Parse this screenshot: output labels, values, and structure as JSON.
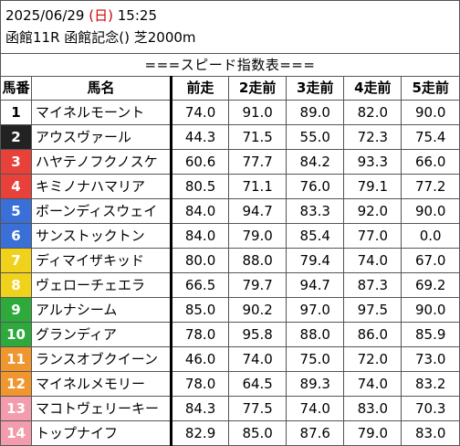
{
  "header": {
    "date": "2025/06/29",
    "dow_open": "(",
    "dow": "日",
    "dow_close": ")",
    "time": "15:25",
    "race": "函館11R 函館記念() 芝2000m"
  },
  "table_title": "===スピード指数表===",
  "columns": {
    "num": "馬番",
    "name": "馬名",
    "r1": "前走",
    "r2": "2走前",
    "r3": "3走前",
    "r4": "4走前",
    "r5": "5走前"
  },
  "rows": [
    {
      "num": "1",
      "name": "マイネルモーント",
      "r1": "74.0",
      "r2": "91.0",
      "r3": "89.0",
      "r4": "82.0",
      "r5": "90.0",
      "bg": "#ffffff",
      "fg": "#000000"
    },
    {
      "num": "2",
      "name": "アウスヴァール",
      "r1": "44.3",
      "r2": "71.5",
      "r3": "55.0",
      "r4": "72.3",
      "r5": "75.4",
      "bg": "#222222",
      "fg": "#ffffff"
    },
    {
      "num": "3",
      "name": "ハヤテノフクノスケ",
      "r1": "60.6",
      "r2": "77.7",
      "r3": "84.2",
      "r4": "93.3",
      "r5": "66.0",
      "bg": "#e8413a",
      "fg": "#ffffff"
    },
    {
      "num": "4",
      "name": "キミノナハマリア",
      "r1": "80.5",
      "r2": "71.1",
      "r3": "76.0",
      "r4": "79.1",
      "r5": "77.2",
      "bg": "#e8413a",
      "fg": "#ffffff"
    },
    {
      "num": "5",
      "name": "ボーンディスウェイ",
      "r1": "84.0",
      "r2": "94.7",
      "r3": "83.3",
      "r4": "92.0",
      "r5": "90.0",
      "bg": "#3a6fd8",
      "fg": "#ffffff"
    },
    {
      "num": "6",
      "name": "サンストックトン",
      "r1": "84.0",
      "r2": "79.0",
      "r3": "85.4",
      "r4": "77.0",
      "r5": "0.0",
      "bg": "#3a6fd8",
      "fg": "#ffffff"
    },
    {
      "num": "7",
      "name": "ディマイザキッド",
      "r1": "80.0",
      "r2": "88.0",
      "r3": "79.4",
      "r4": "74.0",
      "r5": "67.0",
      "bg": "#f0d21c",
      "fg": "#ffffff"
    },
    {
      "num": "8",
      "name": "ヴェローチェエラ",
      "r1": "66.5",
      "r2": "79.7",
      "r3": "94.7",
      "r4": "87.3",
      "r5": "69.2",
      "bg": "#f0d21c",
      "fg": "#ffffff"
    },
    {
      "num": "9",
      "name": "アルナシーム",
      "r1": "85.0",
      "r2": "90.2",
      "r3": "97.0",
      "r4": "97.5",
      "r5": "90.0",
      "bg": "#2eaa3c",
      "fg": "#ffffff"
    },
    {
      "num": "10",
      "name": "グランディア",
      "r1": "78.0",
      "r2": "95.8",
      "r3": "88.0",
      "r4": "86.0",
      "r5": "85.9",
      "bg": "#2eaa3c",
      "fg": "#ffffff"
    },
    {
      "num": "11",
      "name": "ランスオブクイーン",
      "r1": "46.0",
      "r2": "74.0",
      "r3": "75.0",
      "r4": "72.0",
      "r5": "73.0",
      "bg": "#f0962e",
      "fg": "#ffffff"
    },
    {
      "num": "12",
      "name": "マイネルメモリー",
      "r1": "78.0",
      "r2": "64.5",
      "r3": "89.3",
      "r4": "74.0",
      "r5": "83.2",
      "bg": "#f0962e",
      "fg": "#ffffff"
    },
    {
      "num": "13",
      "name": "マコトヴェリーキー",
      "r1": "84.3",
      "r2": "77.5",
      "r3": "74.0",
      "r4": "83.0",
      "r5": "70.3",
      "bg": "#f29cae",
      "fg": "#ffffff"
    },
    {
      "num": "14",
      "name": "トップナイフ",
      "r1": "82.9",
      "r2": "85.0",
      "r3": "87.6",
      "r4": "79.0",
      "r5": "83.0",
      "bg": "#f29cae",
      "fg": "#ffffff"
    }
  ]
}
